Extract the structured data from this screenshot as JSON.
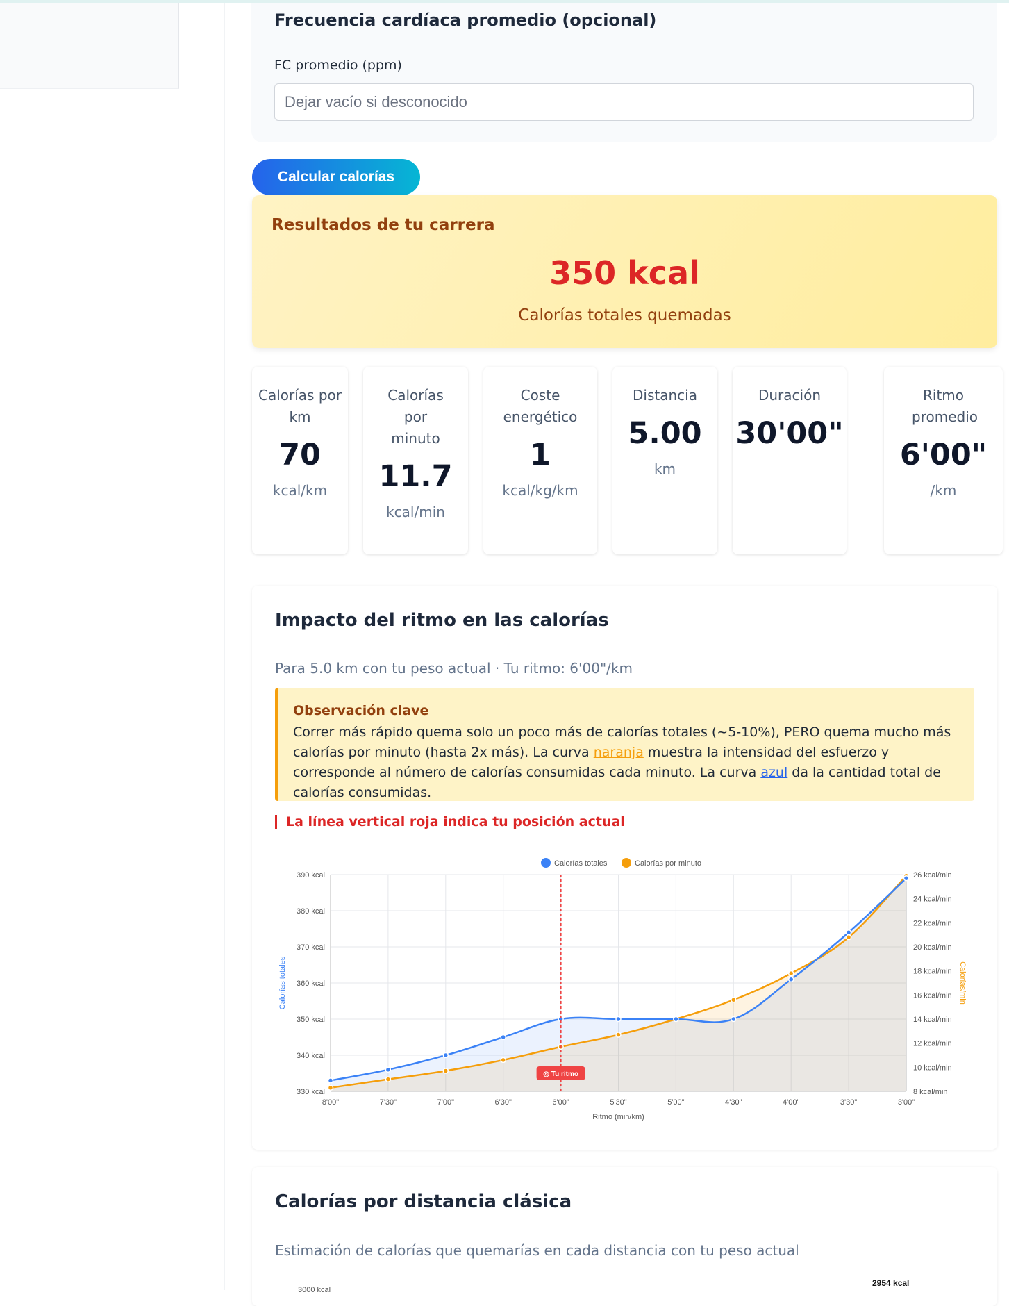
{
  "heart_rate": {
    "title": "Frecuencia cardíaca promedio (opcional)",
    "label": "FC promedio (ppm)",
    "placeholder": "Dejar vacío si desconocido"
  },
  "calc_button": "Calcular calorías",
  "results": {
    "title": "Resultados de tu carrera",
    "value": "350 kcal",
    "subtitle": "Calorías totales quemadas"
  },
  "stats": [
    {
      "label": "Calorías por km",
      "value": "70",
      "unit": "kcal/km"
    },
    {
      "label": "Calorías por minuto",
      "value": "11.7",
      "unit": "kcal/min"
    },
    {
      "label": "Coste energético",
      "value": "1",
      "unit": "kcal/kg/km"
    },
    {
      "label": "Distancia",
      "value": "5.00",
      "unit": "km"
    },
    {
      "label": "Duración",
      "value": "30'00\"",
      "unit": ""
    },
    {
      "label": "Ritmo promedio",
      "value": "6'00\"",
      "unit": "/km"
    }
  ],
  "pace_section": {
    "title": "Impacto del ritmo en las calorías",
    "subtitle": "Para 5.0 km con tu peso actual · Tu ritmo: 6'00\"/km",
    "observation_title": "Observación clave",
    "observation_text_1": "Correr más rápido quema solo un poco más de calorías totales (~5-10%), PERO quema mucho más calorías por minuto (hasta 2x más). La curva ",
    "observation_orange": "naranja",
    "observation_text_2": " muestra la intensidad del esfuerzo y corresponde al número de calorías consumidas cada minuto. La curva ",
    "observation_blue": "azul",
    "observation_text_3": " da la cantidad total de calorías consumidas.",
    "redline_note": "La línea vertical roja indica tu posición actual"
  },
  "chart_data": {
    "type": "line",
    "x": [
      "8'00\"",
      "7'30\"",
      "7'00\"",
      "6'30\"",
      "6'00\"",
      "5'30\"",
      "5'00\"",
      "4'30\"",
      "4'00\"",
      "3'30\"",
      "3'00\""
    ],
    "series": [
      {
        "name": "Calorías totales",
        "axis": "left",
        "color": "#3b82f6",
        "values": [
          333,
          336,
          340,
          345,
          350,
          350,
          350,
          350,
          361,
          374,
          389
        ]
      },
      {
        "name": "Calorías por minuto",
        "axis": "right",
        "color": "#f59e0b",
        "values": [
          8.3,
          9.0,
          9.7,
          10.6,
          11.7,
          12.7,
          14.0,
          15.6,
          17.8,
          20.8,
          25.9
        ]
      }
    ],
    "xlabel": "Ritmo (min/km)",
    "ylabel_left": "Calorías totales",
    "ylabel_right": "Calorías/min",
    "ylim_left": [
      330,
      390
    ],
    "ylim_right": [
      8,
      26
    ],
    "left_ticks": [
      "390 kcal",
      "380 kcal",
      "370 kcal",
      "360 kcal",
      "350 kcal",
      "340 kcal",
      "330 kcal"
    ],
    "right_ticks": [
      "26 kcal/min",
      "24 kcal/min",
      "22 kcal/min",
      "20 kcal/min",
      "18 kcal/min",
      "16 kcal/min",
      "14 kcal/min",
      "12 kcal/min",
      "10 kcal/min",
      "8 kcal/min"
    ],
    "current_x": "6'00\"",
    "current_marker_label": "◎ Tu ritmo",
    "legend_position": "top",
    "grid": true
  },
  "distance_section": {
    "title": "Calorías por distancia clásica",
    "subtitle": "Estimación de calorías que quemarías en cada distancia con tu peso actual",
    "first_y_tick": "3000 kcal",
    "top_bar_label": "2954 kcal"
  }
}
